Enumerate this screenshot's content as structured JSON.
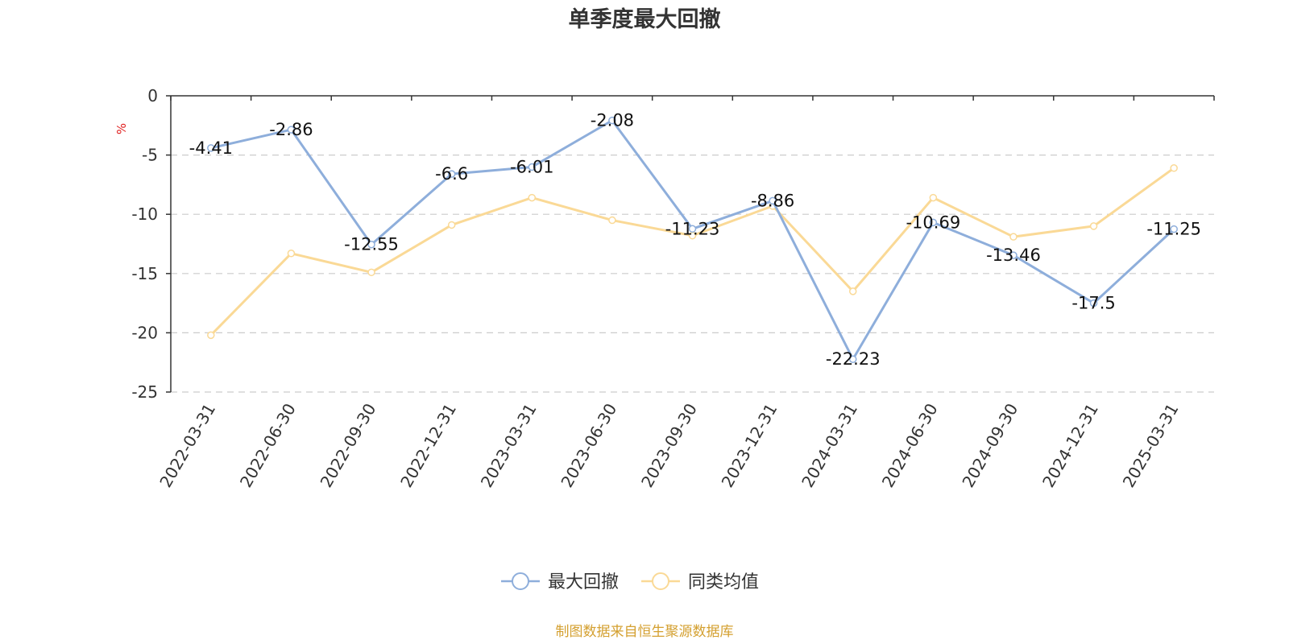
{
  "chart_data": {
    "type": "line",
    "title": "单季度最大回撤",
    "yunit": "%",
    "ylim": [
      -25,
      0
    ],
    "yticks": [
      0,
      -5,
      -10,
      -15,
      -20,
      -25
    ],
    "grid": true,
    "legend_position": "bottom-center",
    "categories": [
      "2022-03-31",
      "2022-06-30",
      "2022-09-30",
      "2022-12-31",
      "2023-03-31",
      "2023-06-30",
      "2023-09-30",
      "2023-12-31",
      "2024-03-31",
      "2024-06-30",
      "2024-09-30",
      "2024-12-31",
      "2025-03-31"
    ],
    "series": [
      {
        "name": "最大回撤",
        "color": "#8eaedb",
        "show_labels": true,
        "values": [
          -4.41,
          -2.86,
          -12.55,
          -6.6,
          -6.01,
          -2.08,
          -11.23,
          -8.86,
          -22.23,
          -10.69,
          -13.46,
          -17.5,
          -11.25
        ],
        "labels": [
          "-4.41",
          "-2.86",
          "-12.55",
          "-6.6",
          "-6.01",
          "-2.08",
          "-11.23",
          "-8.86",
          "-22.23",
          "-10.69",
          "-13.46",
          "-17.5",
          "-11.25"
        ]
      },
      {
        "name": "同类均值",
        "color": "#fad996",
        "show_labels": false,
        "values": [
          -20.2,
          -13.3,
          -14.9,
          -10.9,
          -8.6,
          -10.5,
          -11.8,
          -9.3,
          -16.5,
          -8.6,
          -11.9,
          -11.0,
          -6.1
        ]
      }
    ]
  },
  "source": "制图数据来自恒生聚源数据库",
  "colors": {
    "axis": "#333333",
    "grid": "#cccccc",
    "unit": "#e02020",
    "source": "#d4a030"
  }
}
